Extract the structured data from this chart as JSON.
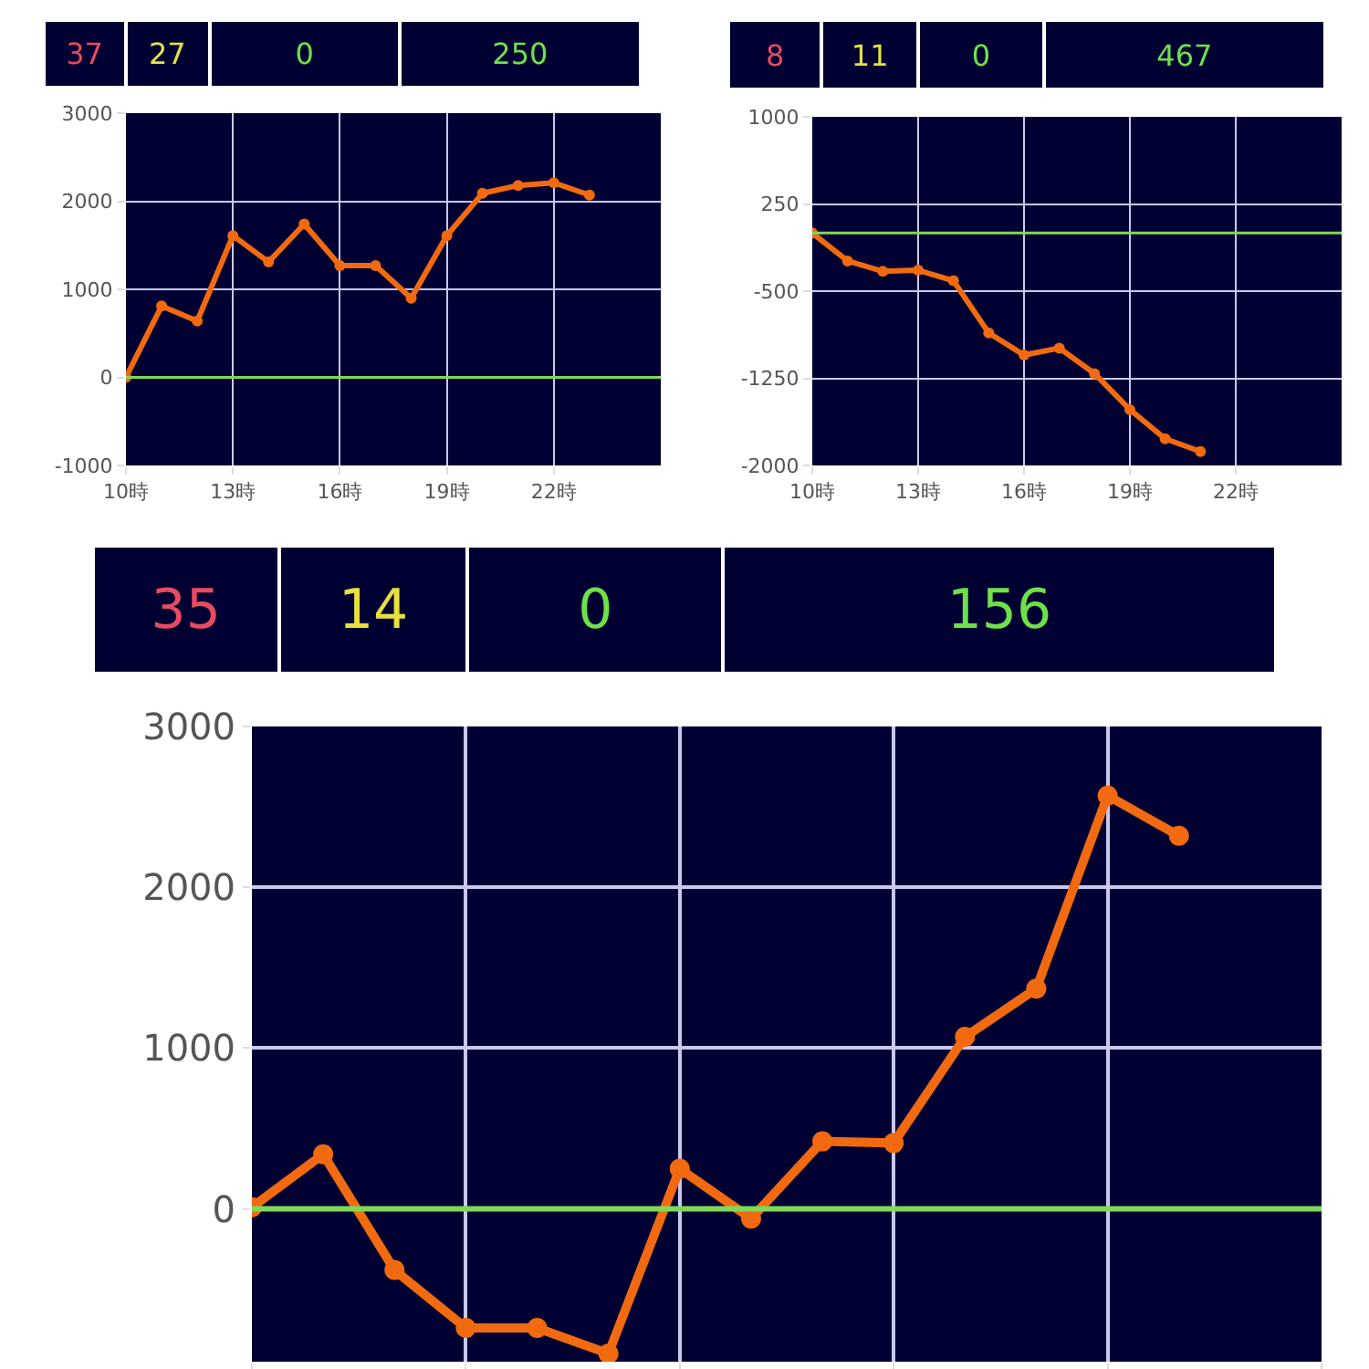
{
  "chart_data": [
    {
      "type": "line",
      "annotations": [
        "37",
        "27",
        "0",
        "250"
      ],
      "x": [
        10,
        11,
        12,
        13,
        14,
        15,
        16,
        17,
        18,
        19,
        20,
        21,
        22,
        23
      ],
      "series": [
        {
          "color": "#f26a10",
          "values": [
            0,
            810,
            640,
            1610,
            1310,
            1740,
            1270,
            1270,
            900,
            1610,
            2090,
            2180,
            2210,
            2070
          ]
        }
      ],
      "xlim": [
        10,
        25
      ],
      "xticks": [
        {
          "value": 10,
          "label": "10時"
        },
        {
          "value": 13,
          "label": "13時"
        },
        {
          "value": 16,
          "label": "16時"
        },
        {
          "value": 19,
          "label": "19時"
        },
        {
          "value": 22,
          "label": "22時"
        }
      ],
      "ylim": [
        -1000,
        3000
      ],
      "yticks": [
        -1000,
        0,
        1000,
        2000,
        3000
      ],
      "grid": true,
      "legend": false,
      "marker": "circle",
      "ref_lines": [
        {
          "axis": "y",
          "value": 0,
          "color": "#7ed957"
        }
      ]
    },
    {
      "type": "line",
      "annotations": [
        "8",
        "11",
        "0",
        "467"
      ],
      "x": [
        10,
        11,
        12,
        13,
        14,
        15,
        16,
        17,
        18,
        19,
        20,
        21
      ],
      "series": [
        {
          "color": "#f26a10",
          "values": [
            0,
            -240,
            -330,
            -320,
            -410,
            -860,
            -1050,
            -990,
            -1210,
            -1520,
            -1770,
            -1880
          ]
        }
      ],
      "xlim": [
        10,
        25
      ],
      "xticks": [
        {
          "value": 10,
          "label": "10時"
        },
        {
          "value": 13,
          "label": "13時"
        },
        {
          "value": 16,
          "label": "16時"
        },
        {
          "value": 19,
          "label": "19時"
        },
        {
          "value": 22,
          "label": "22時"
        }
      ],
      "ylim": [
        -2000,
        1000
      ],
      "yticks": [
        -2000,
        -1250,
        -500,
        250,
        1000
      ],
      "grid": true,
      "legend": false,
      "marker": "circle",
      "ref_lines": [
        {
          "axis": "y",
          "value": 0,
          "color": "#7ed957"
        }
      ]
    },
    {
      "type": "line",
      "annotations": [
        "35",
        "14",
        "0",
        "156"
      ],
      "categories": [
        null,
        null,
        null,
        null,
        null,
        null,
        null,
        null,
        null,
        null,
        null,
        null,
        null,
        null
      ],
      "series": [
        {
          "color": "#f26a10",
          "values": [
            10,
            340,
            -380,
            -740,
            -740,
            -900,
            250,
            -60,
            420,
            410,
            1070,
            1370,
            2570,
            2320
          ]
        }
      ],
      "ylim": [
        -950,
        3000
      ],
      "yticks": [
        0,
        1000,
        2000,
        3000
      ],
      "grid": true,
      "legend": false,
      "marker": "circle",
      "tick_labels": "y",
      "ref_lines": [
        {
          "axis": "y",
          "value": 0,
          "color": "#7ed957"
        }
      ]
    }
  ]
}
